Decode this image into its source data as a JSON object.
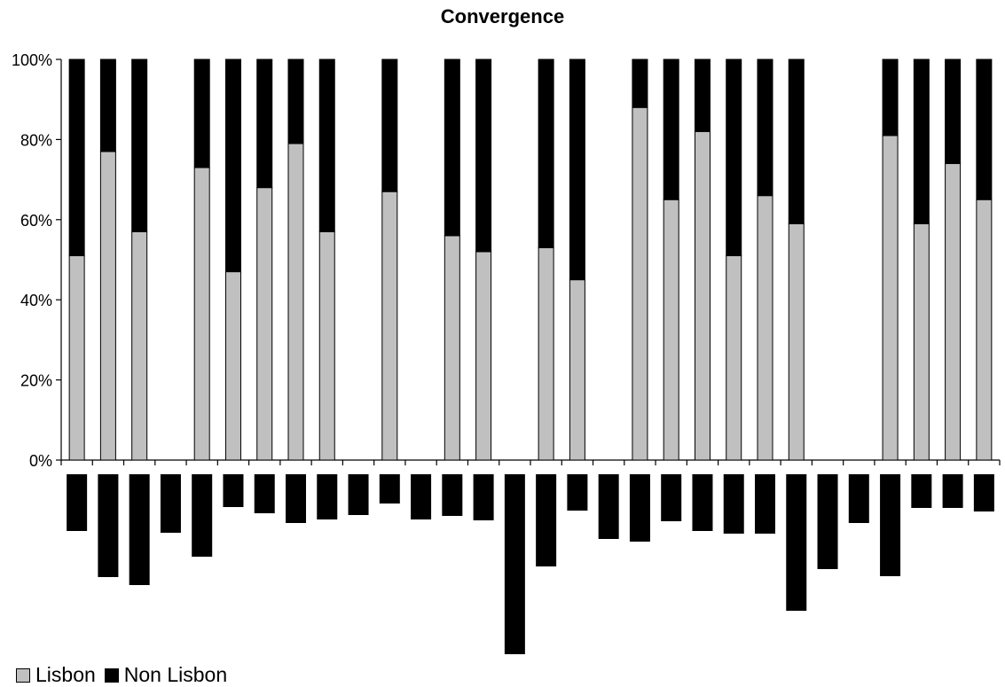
{
  "chart_data": {
    "type": "bar",
    "stacked": true,
    "title": "Convergence",
    "xlabel": "",
    "ylabel": "",
    "ylim": [
      0,
      100
    ],
    "y_ticks": [
      "0%",
      "20%",
      "40%",
      "60%",
      "80%",
      "100%"
    ],
    "grid": false,
    "legend_position": "bottom-left",
    "categories_count": 30,
    "series": [
      {
        "name": "Lisbon",
        "color": "#c0c0c0",
        "values": [
          51,
          77,
          57,
          null,
          73,
          47,
          68,
          79,
          57,
          null,
          67,
          null,
          56,
          52,
          null,
          53,
          45,
          null,
          88,
          65,
          82,
          51,
          66,
          59,
          null,
          null,
          81,
          59,
          74,
          65
        ]
      },
      {
        "name": "Non Lisbon",
        "color": "#000000",
        "values": [
          49,
          23,
          43,
          null,
          27,
          53,
          32,
          21,
          43,
          null,
          33,
          null,
          44,
          48,
          null,
          47,
          55,
          null,
          12,
          35,
          18,
          49,
          34,
          41,
          null,
          null,
          19,
          41,
          26,
          35
        ]
      }
    ],
    "lower_bars": {
      "color": "#000000",
      "values": [
        64,
        116,
        125,
        66,
        93,
        37,
        44,
        55,
        51,
        46,
        33,
        51,
        47,
        52,
        203,
        104,
        41,
        73,
        76,
        53,
        64,
        67,
        67,
        154,
        107,
        55,
        115,
        38,
        38,
        42
      ]
    }
  }
}
